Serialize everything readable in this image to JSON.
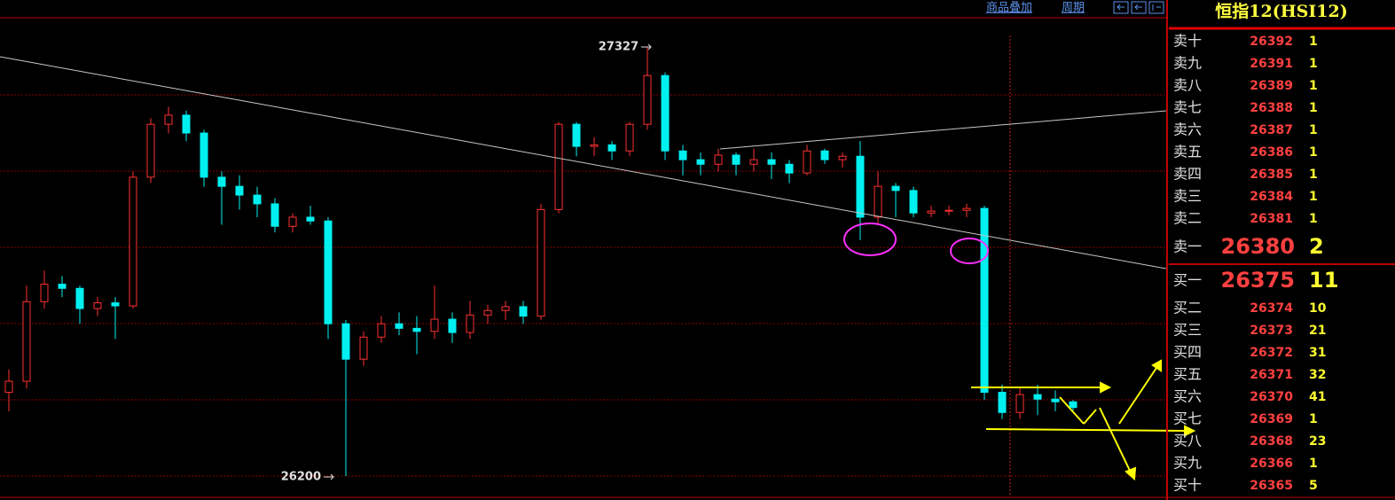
{
  "toolbar": {
    "links": [
      "商品叠加",
      "周期"
    ]
  },
  "chart": {
    "type": "candlestick",
    "up_color": "#ff3030",
    "down_color": "#00f0f0",
    "high_label": 27327,
    "low_label": 26200,
    "candles": [
      [
        26420,
        26480,
        26370,
        26449
      ],
      [
        26449,
        26700,
        26430,
        26658
      ],
      [
        26658,
        26740,
        26640,
        26704
      ],
      [
        26704,
        26725,
        26670,
        26693
      ],
      [
        26693,
        26700,
        26600,
        26640
      ],
      [
        26640,
        26670,
        26620,
        26655
      ],
      [
        26655,
        26670,
        26560,
        26647
      ],
      [
        26647,
        27000,
        26640,
        26985
      ],
      [
        26985,
        27140,
        26970,
        27124
      ],
      [
        27124,
        27170,
        27100,
        27148
      ],
      [
        27148,
        27160,
        27080,
        27101
      ],
      [
        27101,
        27110,
        26960,
        26985
      ],
      [
        26985,
        27000,
        26860,
        26961
      ],
      [
        26961,
        26990,
        26900,
        26938
      ],
      [
        26938,
        26960,
        26880,
        26915
      ],
      [
        26915,
        26930,
        26840,
        26856
      ],
      [
        26856,
        26890,
        26840,
        26880
      ],
      [
        26880,
        26910,
        26860,
        26870
      ],
      [
        26870,
        26880,
        26560,
        26600
      ],
      [
        26600,
        26610,
        26200,
        26507
      ],
      [
        26507,
        26580,
        26490,
        26565
      ],
      [
        26565,
        26620,
        26550,
        26600
      ],
      [
        26600,
        26630,
        26570,
        26588
      ],
      [
        26588,
        26620,
        26520,
        26580
      ],
      [
        26580,
        26700,
        26560,
        26612
      ],
      [
        26612,
        26630,
        26550,
        26577
      ],
      [
        26577,
        26660,
        26560,
        26623
      ],
      [
        26623,
        26650,
        26600,
        26635
      ],
      [
        26635,
        26660,
        26610,
        26645
      ],
      [
        26645,
        26660,
        26600,
        26620
      ],
      [
        26620,
        26915,
        26610,
        26900
      ],
      [
        26900,
        27130,
        26890,
        27124
      ],
      [
        27124,
        27130,
        27040,
        27066
      ],
      [
        27066,
        27090,
        27040,
        27070
      ],
      [
        27070,
        27080,
        27030,
        27054
      ],
      [
        27054,
        27130,
        27040,
        27124
      ],
      [
        27124,
        27327,
        27110,
        27252
      ],
      [
        27252,
        27260,
        27030,
        27054
      ],
      [
        27054,
        27070,
        26990,
        27031
      ],
      [
        27031,
        27050,
        26990,
        27019
      ],
      [
        27019,
        27060,
        27000,
        27043
      ],
      [
        27043,
        27050,
        26990,
        27019
      ],
      [
        27019,
        27060,
        27000,
        27031
      ],
      [
        27031,
        27050,
        26980,
        27019
      ],
      [
        27019,
        27030,
        26970,
        26996
      ],
      [
        26996,
        27070,
        26990,
        27054
      ],
      [
        27054,
        27060,
        27020,
        27031
      ],
      [
        27031,
        27050,
        27010,
        27040
      ],
      [
        27040,
        27080,
        26820,
        26880
      ],
      [
        26880,
        27000,
        26860,
        26961
      ],
      [
        26961,
        26970,
        26880,
        26950
      ],
      [
        26950,
        26960,
        26880,
        26891
      ],
      [
        26891,
        26910,
        26880,
        26896
      ],
      [
        26896,
        26910,
        26885,
        26898
      ],
      [
        26898,
        26915,
        26880,
        26903
      ],
      [
        26903,
        26910,
        26400,
        26420
      ],
      [
        26420,
        26440,
        26350,
        26367
      ],
      [
        26367,
        26430,
        26350,
        26414
      ],
      [
        26414,
        26440,
        26360,
        26402
      ],
      [
        26402,
        26425,
        26370,
        26395
      ],
      [
        26395,
        26400,
        26370,
        26380
      ]
    ]
  },
  "order_book": {
    "title": "恒指12(HSI12)",
    "asks": [
      {
        "label": "卖十",
        "price": 26392,
        "volume": 1
      },
      {
        "label": "卖九",
        "price": 26391,
        "volume": 1
      },
      {
        "label": "卖八",
        "price": 26389,
        "volume": 1
      },
      {
        "label": "卖七",
        "price": 26388,
        "volume": 1
      },
      {
        "label": "卖六",
        "price": 26387,
        "volume": 1
      },
      {
        "label": "卖五",
        "price": 26386,
        "volume": 1
      },
      {
        "label": "卖四",
        "price": 26385,
        "volume": 1
      },
      {
        "label": "卖三",
        "price": 26384,
        "volume": 1
      },
      {
        "label": "卖二",
        "price": 26381,
        "volume": 1
      },
      {
        "label": "卖一",
        "price": 26380,
        "volume": 2
      }
    ],
    "bids": [
      {
        "label": "买一",
        "price": 26375,
        "volume": 11
      },
      {
        "label": "买二",
        "price": 26374,
        "volume": 10
      },
      {
        "label": "买三",
        "price": 26373,
        "volume": 21
      },
      {
        "label": "买四",
        "price": 26372,
        "volume": 31
      },
      {
        "label": "买五",
        "price": 26371,
        "volume": 32
      },
      {
        "label": "买六",
        "price": 26370,
        "volume": 41
      },
      {
        "label": "买七",
        "price": 26369,
        "volume": 1
      },
      {
        "label": "买八",
        "price": 26368,
        "volume": 23
      },
      {
        "label": "买九",
        "price": 26366,
        "volume": 1
      },
      {
        "label": "买十",
        "price": 26365,
        "volume": 5
      }
    ]
  }
}
